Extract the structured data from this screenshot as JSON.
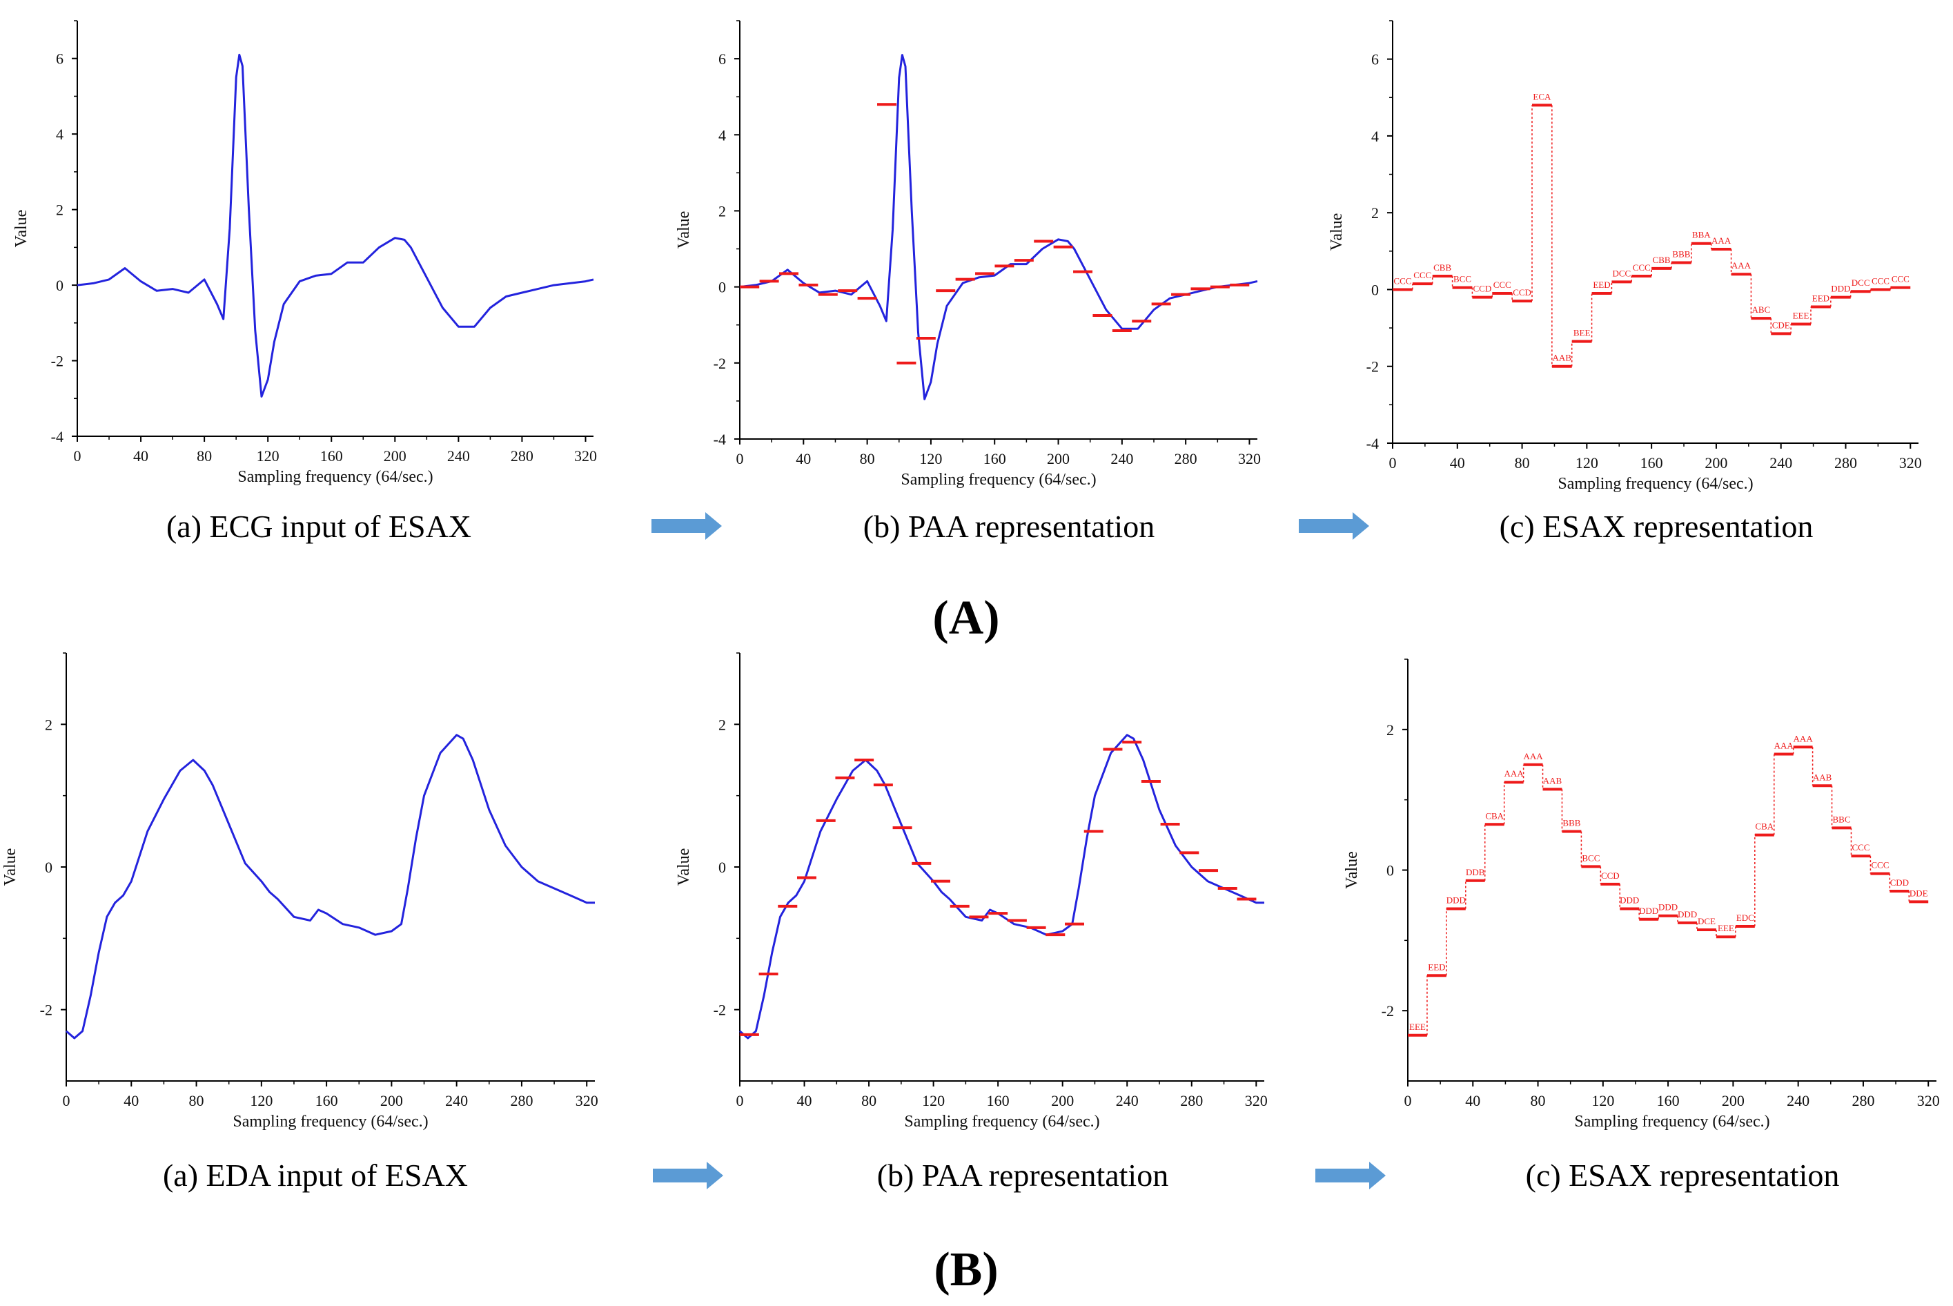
{
  "colors": {
    "signal": "#2323dd",
    "paa": "#ee1a1a",
    "axis": "#000000",
    "arrow": "#5b9bd5"
  },
  "rows": [
    {
      "label": "(A)",
      "arrow_icon": "right-arrow-icon",
      "captions": [
        "(a) ECG input of ESAX",
        "(b) PAA representation",
        "(c) ESAX representation"
      ]
    },
    {
      "label": "(B)",
      "arrow_icon": "right-arrow-icon",
      "captions": [
        "(a) EDA input of ESAX",
        "(b) PAA representation",
        "(c) ESAX representation"
      ]
    }
  ],
  "chart_data": [
    {
      "id": "A-a",
      "type": "line",
      "title": "",
      "xlabel": "Sampling  frequency (64/sec.)",
      "ylabel": "Value",
      "xlim": [
        0,
        325
      ],
      "ylim": [
        -4,
        7
      ],
      "xticks": [
        "0",
        "40",
        "80",
        "120",
        "160",
        "200",
        "240",
        "280",
        "320"
      ],
      "yticks": [
        "-4",
        "-2",
        "0",
        "2",
        "4",
        "6"
      ],
      "series": [
        {
          "name": "ECG",
          "x": [
            0,
            10,
            20,
            30,
            40,
            50,
            60,
            70,
            80,
            88,
            92,
            96,
            100,
            102,
            104,
            108,
            112,
            116,
            120,
            124,
            130,
            140,
            150,
            160,
            170,
            180,
            190,
            200,
            206,
            210,
            220,
            230,
            240,
            250,
            260,
            270,
            280,
            290,
            300,
            310,
            320,
            325
          ],
          "y": [
            0,
            0.05,
            0.15,
            0.45,
            0.1,
            -0.15,
            -0.1,
            -0.2,
            0.15,
            -0.5,
            -0.9,
            1.5,
            5.5,
            6.1,
            5.8,
            2.0,
            -1.2,
            -2.95,
            -2.5,
            -1.5,
            -0.5,
            0.1,
            0.25,
            0.3,
            0.6,
            0.6,
            1.0,
            1.25,
            1.2,
            1.0,
            0.2,
            -0.6,
            -1.1,
            -1.1,
            -0.6,
            -0.3,
            -0.2,
            -0.1,
            0,
            0.05,
            0.1,
            0.15
          ]
        }
      ]
    },
    {
      "id": "A-b",
      "type": "line",
      "title": "",
      "xlabel": "Sampling  frequency (64/sec.)",
      "ylabel": "Value",
      "xlim": [
        0,
        325
      ],
      "ylim": [
        -4,
        7
      ],
      "xticks": [
        "0",
        "40",
        "80",
        "120",
        "160",
        "200",
        "240",
        "280",
        "320"
      ],
      "yticks": [
        "-4",
        "-2",
        "0",
        "2",
        "4",
        "6"
      ],
      "series": [
        {
          "name": "ECG",
          "x": [
            0,
            10,
            20,
            30,
            40,
            50,
            60,
            70,
            80,
            88,
            92,
            96,
            100,
            102,
            104,
            108,
            112,
            116,
            120,
            124,
            130,
            140,
            150,
            160,
            170,
            180,
            190,
            200,
            206,
            210,
            220,
            230,
            240,
            250,
            260,
            270,
            280,
            290,
            300,
            310,
            320,
            325
          ],
          "y": [
            0,
            0.05,
            0.15,
            0.45,
            0.1,
            -0.15,
            -0.1,
            -0.2,
            0.15,
            -0.5,
            -0.9,
            1.5,
            5.5,
            6.1,
            5.8,
            2.0,
            -1.2,
            -2.95,
            -2.5,
            -1.5,
            -0.5,
            0.1,
            0.25,
            0.3,
            0.6,
            0.6,
            1.0,
            1.25,
            1.2,
            1.0,
            0.2,
            -0.6,
            -1.1,
            -1.1,
            -0.6,
            -0.3,
            -0.2,
            -0.1,
            0,
            0.05,
            0.1,
            0.15
          ]
        },
        {
          "name": "PAA",
          "segments": [
            0,
            0.15,
            0.35,
            0.05,
            -0.2,
            -0.1,
            -0.3,
            4.8,
            -2.0,
            -1.35,
            -0.1,
            0.2,
            0.35,
            0.55,
            0.7,
            1.2,
            1.05,
            0.4,
            -0.75,
            -1.15,
            -0.9,
            -0.45,
            -0.2,
            -0.05,
            0,
            0.05
          ]
        }
      ]
    },
    {
      "id": "A-c",
      "type": "line",
      "title": "",
      "xlabel": "Sampling  frequency (64/sec.)",
      "ylabel": "Value",
      "xlim": [
        0,
        325
      ],
      "ylim": [
        -4,
        7
      ],
      "xticks": [
        "0",
        "40",
        "80",
        "120",
        "160",
        "200",
        "240",
        "280",
        "320"
      ],
      "yticks": [
        "-4",
        "-2",
        "0",
        "2",
        "4",
        "6"
      ],
      "series": [
        {
          "name": "ESAX",
          "segments": [
            0,
            0.15,
            0.35,
            0.05,
            -0.2,
            -0.1,
            -0.3,
            4.8,
            -2.0,
            -1.35,
            -0.1,
            0.2,
            0.35,
            0.55,
            0.7,
            1.2,
            1.05,
            0.4,
            -0.75,
            -1.15,
            -0.9,
            -0.45,
            -0.2,
            -0.05,
            0,
            0.05
          ],
          "labels": [
            "CCC",
            "CCC",
            "CBB",
            "BCC",
            "CCD",
            "CCC",
            "CCD",
            "ECA",
            "AAB",
            "BEE",
            "EED",
            "DCC",
            "CCC",
            "CBB",
            "BBB",
            "BBA",
            "AAA",
            "AAA",
            "ABC",
            "CDE",
            "EEE",
            "EED",
            "DDD",
            "DCC",
            "CCC",
            "CCC"
          ]
        }
      ]
    },
    {
      "id": "B-a",
      "type": "line",
      "title": "",
      "xlabel": "Sampling  frequency (64/sec.)",
      "ylabel": "Value",
      "xlim": [
        0,
        325
      ],
      "ylim": [
        -3,
        3
      ],
      "xticks": [
        "0",
        "40",
        "80",
        "120",
        "160",
        "200",
        "240",
        "280",
        "320"
      ],
      "yticks": [
        "-2",
        "0",
        "2"
      ],
      "series": [
        {
          "name": "EDA",
          "x": [
            0,
            5,
            10,
            15,
            20,
            25,
            30,
            35,
            40,
            50,
            60,
            70,
            78,
            85,
            90,
            100,
            110,
            120,
            125,
            130,
            140,
            150,
            155,
            160,
            170,
            180,
            190,
            200,
            206,
            210,
            215,
            220,
            230,
            240,
            244,
            250,
            260,
            270,
            280,
            290,
            300,
            310,
            320,
            325
          ],
          "y": [
            -2.3,
            -2.4,
            -2.3,
            -1.8,
            -1.2,
            -0.7,
            -0.5,
            -0.4,
            -0.2,
            0.5,
            0.95,
            1.35,
            1.5,
            1.35,
            1.15,
            0.6,
            0.05,
            -0.2,
            -0.35,
            -0.45,
            -0.7,
            -0.75,
            -0.6,
            -0.65,
            -0.8,
            -0.85,
            -0.95,
            -0.9,
            -0.8,
            -0.3,
            0.4,
            1.0,
            1.6,
            1.85,
            1.8,
            1.5,
            0.8,
            0.3,
            0.0,
            -0.2,
            -0.3,
            -0.4,
            -0.5,
            -0.5
          ]
        }
      ]
    },
    {
      "id": "B-b",
      "type": "line",
      "title": "",
      "xlabel": "Sampling  frequency (64/sec.)",
      "ylabel": "Value",
      "xlim": [
        0,
        325
      ],
      "ylim": [
        -3,
        3
      ],
      "xticks": [
        "0",
        "40",
        "80",
        "120",
        "160",
        "200",
        "240",
        "280",
        "320"
      ],
      "yticks": [
        "-2",
        "0",
        "2"
      ],
      "series": [
        {
          "name": "EDA",
          "x": [
            0,
            5,
            10,
            15,
            20,
            25,
            30,
            35,
            40,
            50,
            60,
            70,
            78,
            85,
            90,
            100,
            110,
            120,
            125,
            130,
            140,
            150,
            155,
            160,
            170,
            180,
            190,
            200,
            206,
            210,
            215,
            220,
            230,
            240,
            244,
            250,
            260,
            270,
            280,
            290,
            300,
            310,
            320,
            325
          ],
          "y": [
            -2.3,
            -2.4,
            -2.3,
            -1.8,
            -1.2,
            -0.7,
            -0.5,
            -0.4,
            -0.2,
            0.5,
            0.95,
            1.35,
            1.5,
            1.35,
            1.15,
            0.6,
            0.05,
            -0.2,
            -0.35,
            -0.45,
            -0.7,
            -0.75,
            -0.6,
            -0.65,
            -0.8,
            -0.85,
            -0.95,
            -0.9,
            -0.8,
            -0.3,
            0.4,
            1.0,
            1.6,
            1.85,
            1.8,
            1.5,
            0.8,
            0.3,
            0.0,
            -0.2,
            -0.3,
            -0.4,
            -0.5,
            -0.5
          ]
        },
        {
          "name": "PAA",
          "segments": [
            -2.35,
            -1.5,
            -0.55,
            -0.15,
            0.65,
            1.25,
            1.5,
            1.15,
            0.55,
            0.05,
            -0.2,
            -0.55,
            -0.7,
            -0.65,
            -0.75,
            -0.85,
            -0.95,
            -0.8,
            0.5,
            1.65,
            1.75,
            1.2,
            0.6,
            0.2,
            -0.05,
            -0.3,
            -0.45
          ]
        }
      ]
    },
    {
      "id": "B-c",
      "type": "line",
      "title": "",
      "xlabel": "Sampling  frequency (64/sec.)",
      "ylabel": "Value",
      "xlim": [
        0,
        325
      ],
      "ylim": [
        -3,
        3
      ],
      "xticks": [
        "0",
        "40",
        "80",
        "120",
        "160",
        "200",
        "240",
        "280",
        "320"
      ],
      "yticks": [
        "-2",
        "0",
        "2"
      ],
      "series": [
        {
          "name": "ESAX",
          "segments": [
            -2.35,
            -1.5,
            -0.55,
            -0.15,
            0.65,
            1.25,
            1.5,
            1.15,
            0.55,
            0.05,
            -0.2,
            -0.55,
            -0.7,
            -0.65,
            -0.75,
            -0.85,
            -0.95,
            -0.8,
            0.5,
            1.65,
            1.75,
            1.2,
            0.6,
            0.2,
            -0.05,
            -0.3,
            -0.45
          ],
          "labels": [
            "EEE",
            "EED",
            "DDD",
            "DDB",
            "CBA",
            "AAA",
            "AAA",
            "AAB",
            "BBB",
            "BCC",
            "CCD",
            "DDD",
            "DDD",
            "DDD",
            "DDD",
            "DCE",
            "EEE",
            "EDC",
            "CBA",
            "AAA",
            "AAA",
            "AAB",
            "BBC",
            "CCC",
            "CCC",
            "CDD",
            "DDE"
          ]
        }
      ]
    }
  ]
}
